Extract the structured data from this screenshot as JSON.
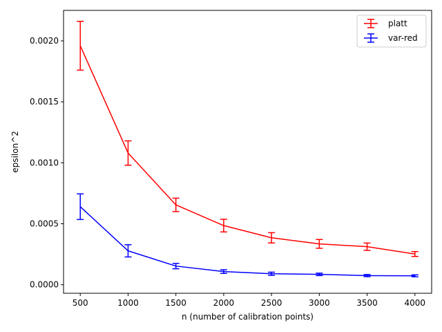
{
  "chart_data": {
    "type": "line",
    "title": "",
    "xlabel": "n (number of calibration points)",
    "ylabel": "epsilon^2",
    "xlim": [
      325,
      4175
    ],
    "ylim": [
      -7e-05,
      0.00225
    ],
    "x": [
      500,
      1000,
      1500,
      2000,
      2500,
      3000,
      3500,
      4000
    ],
    "x_ticks": [
      500,
      1000,
      1500,
      2000,
      2500,
      3000,
      3500,
      4000
    ],
    "x_tick_labels": [
      "500",
      "1000",
      "1500",
      "2000",
      "2500",
      "3000",
      "3500",
      "4000"
    ],
    "y_ticks": [
      0,
      0.0005,
      0.001,
      0.0015,
      0.002
    ],
    "y_tick_labels": [
      "0.0000",
      "0.0005",
      "0.0010",
      "0.0015",
      "0.0020"
    ],
    "grid": false,
    "legend_position": "top-right",
    "series": [
      {
        "name": "platt",
        "color": "#ff0000",
        "values": [
          0.00196,
          0.00108,
          0.000655,
          0.000485,
          0.000385,
          0.000335,
          0.000312,
          0.000252
        ],
        "errors": [
          0.0002,
          0.0001,
          5.5e-05,
          5.2e-05,
          4.2e-05,
          3.6e-05,
          3e-05,
          2e-05
        ]
      },
      {
        "name": "var-red",
        "color": "#0000ff",
        "values": [
          0.00064,
          0.000278,
          0.000153,
          0.000108,
          9e-05,
          8.5e-05,
          7.5e-05,
          7.3e-05
        ],
        "errors": [
          0.000105,
          5e-05,
          2.2e-05,
          1.5e-05,
          1.3e-05,
          1e-05,
          9e-06,
          8e-06
        ]
      }
    ]
  }
}
